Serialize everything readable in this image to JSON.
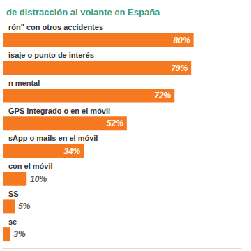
{
  "chart_data": {
    "type": "bar",
    "title": "de distracción al volante en España",
    "orientation": "horizontal",
    "categories": [
      "rón\" con otros accidentes",
      "isaje o punto de interés",
      "n mental",
      "GPS integrado o en el móvil",
      "sApp o mails en el móvil",
      "con el móvil",
      "SS",
      "se"
    ],
    "values": [
      80,
      79,
      72,
      52,
      34,
      10,
      5,
      3
    ],
    "value_labels": [
      "80%",
      "79%",
      "72%",
      "52%",
      "34%",
      "10%",
      "5%",
      "3%"
    ],
    "color": "#f47920",
    "xlim": [
      0,
      100
    ],
    "data_labels": true,
    "tick_labels": false,
    "grid": false
  }
}
